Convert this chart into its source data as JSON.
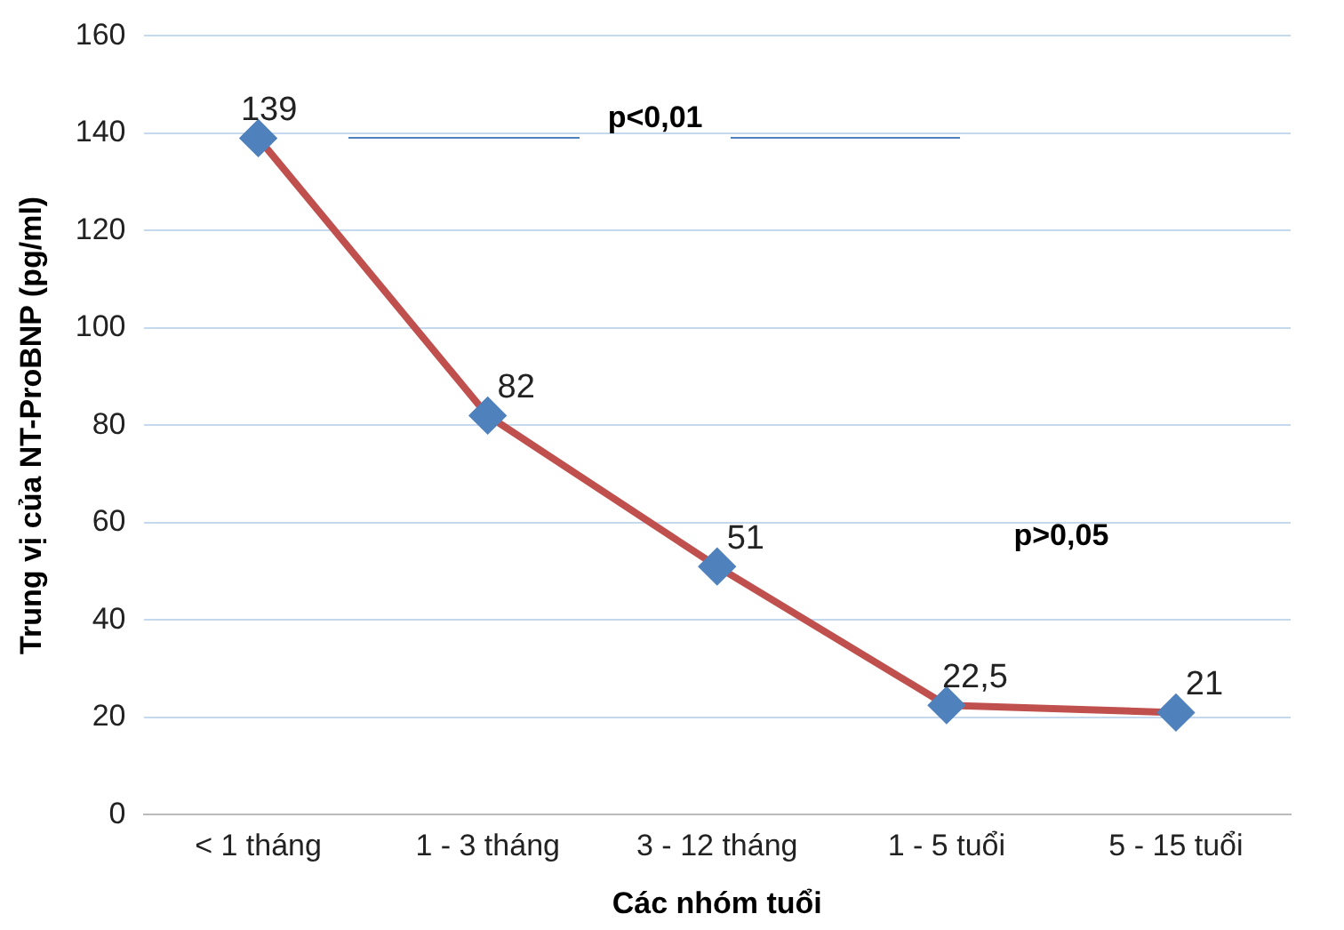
{
  "chart_data": {
    "type": "line",
    "xlabel": "Các nhóm tuổi",
    "ylabel": "Trung vị của NT-ProBNP (pg/ml)",
    "categories": [
      "< 1 tháng",
      "1 - 3 tháng",
      "3 - 12 tháng",
      "1 - 5 tuổi",
      "5 - 15 tuổi"
    ],
    "series": [
      {
        "color": "#c0504d",
        "colors": [
          "#4f81bd",
          "#4f81bd",
          "#4f81bd",
          "#4f81bd",
          "#4f81bd"
        ],
        "values": [
          139,
          82,
          51,
          22.5,
          21
        ],
        "value_labels": [
          "139",
          "82",
          "51",
          "22,5",
          "21"
        ]
      }
    ],
    "marker": "diamond",
    "ylim": [
      0,
      160
    ],
    "yticks": [
      0,
      20,
      40,
      60,
      80,
      100,
      120,
      140,
      160
    ],
    "grid": "y",
    "legend": false,
    "annotations": [
      "p<0,01",
      "p>0,05"
    ]
  }
}
